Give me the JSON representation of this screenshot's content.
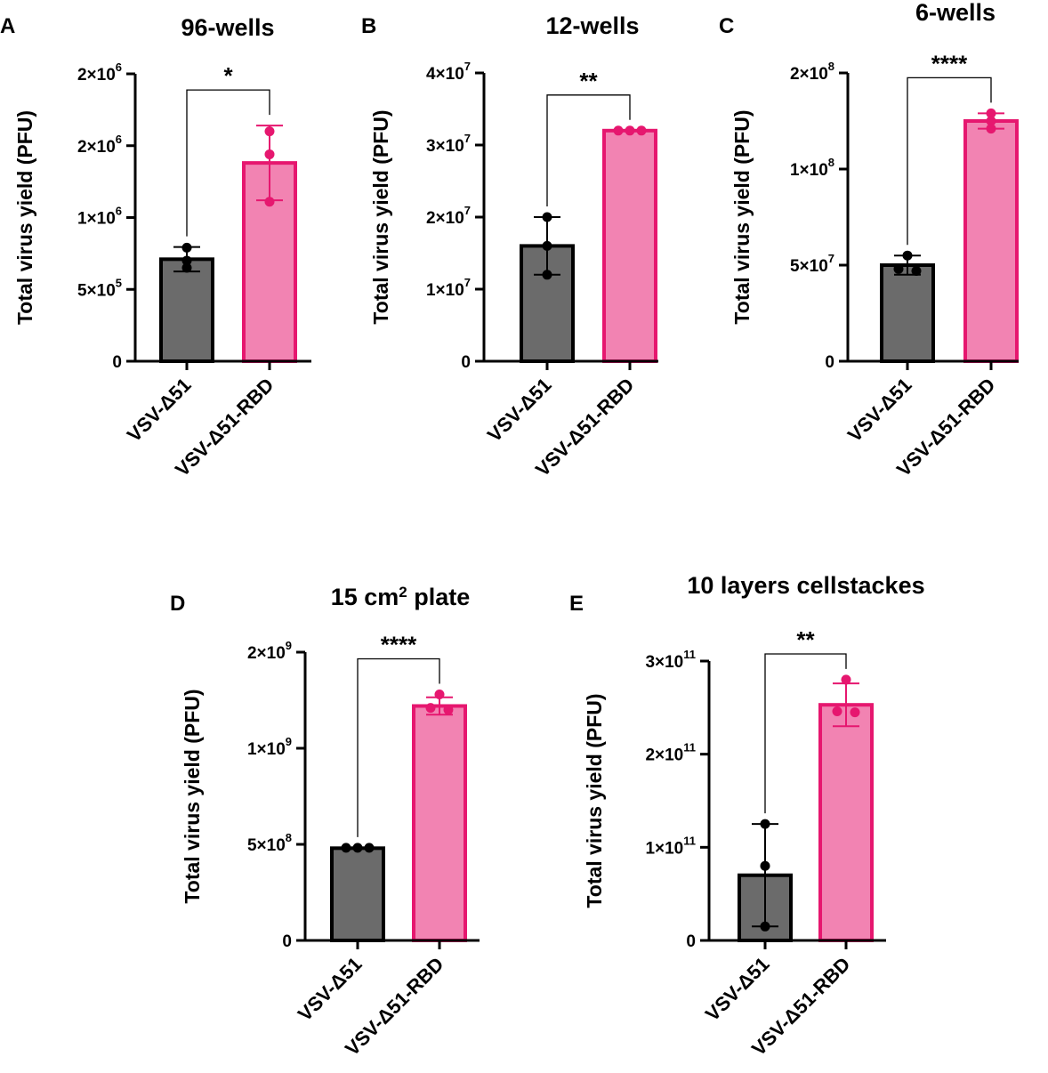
{
  "series_colors": {
    "VSV-Δ51": {
      "fill": "#6b6b6b",
      "stroke": "#000000",
      "dot": "#000000"
    },
    "VSV-Δ51-RBD": {
      "fill": "#f283b2",
      "stroke": "#e6176f",
      "dot": "#e6176f"
    }
  },
  "chart_data": [
    {
      "panel": "A",
      "type": "bar",
      "title": "96-wells",
      "ylabel": "Total virus yield (PFU)",
      "categories": [
        "VSV-Δ51",
        "VSV-Δ51-RBD"
      ],
      "ylim": [
        0,
        2000000
      ],
      "yticks": [
        {
          "value": 0,
          "base": "0",
          "exp": ""
        },
        {
          "value": 500000,
          "base": "5×10",
          "exp": "5"
        },
        {
          "value": 1000000,
          "base": "1×10",
          "exp": "6"
        },
        {
          "value": 1500000,
          "base": "2×10",
          "exp": "6"
        },
        {
          "value": 2000000,
          "base": "2×10",
          "exp": "6"
        }
      ],
      "series": [
        {
          "name": "VSV-Δ51",
          "mean": 710000,
          "sd": 85000,
          "points": [
            790000,
            700000,
            650000
          ]
        },
        {
          "name": "VSV-Δ51-RBD",
          "mean": 1380000,
          "sd": 260000,
          "points": [
            1600000,
            1440000,
            1110000
          ]
        }
      ],
      "significance": "*"
    },
    {
      "panel": "B",
      "type": "bar",
      "title": "12-wells",
      "ylabel": "Total virus yield (PFU)",
      "categories": [
        "VSV-Δ51",
        "VSV-Δ51-RBD"
      ],
      "ylim": [
        0,
        40000000
      ],
      "yticks": [
        {
          "value": 0,
          "base": "0",
          "exp": ""
        },
        {
          "value": 10000000,
          "base": "1×10",
          "exp": "7"
        },
        {
          "value": 20000000,
          "base": "2×10",
          "exp": "7"
        },
        {
          "value": 30000000,
          "base": "3×10",
          "exp": "7"
        },
        {
          "value": 40000000,
          "base": "4×10",
          "exp": "7"
        }
      ],
      "series": [
        {
          "name": "VSV-Δ51",
          "mean": 16000000,
          "sd": 4000000,
          "points": [
            20000000,
            16000000,
            12000000
          ]
        },
        {
          "name": "VSV-Δ51-RBD",
          "mean": 32000000,
          "sd": 0,
          "points": [
            32000000,
            32000000,
            32000000
          ]
        }
      ],
      "significance": "**"
    },
    {
      "panel": "C",
      "type": "bar",
      "title": "6-wells",
      "ylabel": "Total virus yield (PFU)",
      "categories": [
        "VSV-Δ51",
        "VSV-Δ51-RBD"
      ],
      "ylim": [
        0,
        150000000
      ],
      "yticks": [
        {
          "value": 0,
          "base": "0",
          "exp": ""
        },
        {
          "value": 50000000,
          "base": "5×10",
          "exp": "7"
        },
        {
          "value": 100000000,
          "base": "1×10",
          "exp": "8"
        },
        {
          "value": 150000000,
          "base": "2×10",
          "exp": "8"
        }
      ],
      "series": [
        {
          "name": "VSV-Δ51",
          "mean": 50000000,
          "sd": 5000000,
          "points": [
            55000000,
            48000000,
            47000000
          ]
        },
        {
          "name": "VSV-Δ51-RBD",
          "mean": 125000000,
          "sd": 4000000,
          "points": [
            129000000,
            125000000,
            121000000
          ]
        }
      ],
      "significance": "****"
    },
    {
      "panel": "D",
      "type": "bar",
      "title": "15 cm",
      "title_sup": "2",
      "title_tail": " plate",
      "ylabel": "Total virus yield (PFU)",
      "categories": [
        "VSV-Δ51",
        "VSV-Δ51-RBD"
      ],
      "ylim": [
        0,
        1500000000
      ],
      "yticks": [
        {
          "value": 0,
          "base": "0",
          "exp": ""
        },
        {
          "value": 500000000,
          "base": "5×10",
          "exp": "8"
        },
        {
          "value": 1000000000,
          "base": "1×10",
          "exp": "9"
        },
        {
          "value": 1500000000,
          "base": "2×10",
          "exp": "9"
        }
      ],
      "series": [
        {
          "name": "VSV-Δ51",
          "mean": 480000000,
          "sd": 0,
          "points": [
            482000000,
            482000000,
            482000000
          ]
        },
        {
          "name": "VSV-Δ51-RBD",
          "mean": 1220000000,
          "sd": 45000000,
          "points": [
            1280000000,
            1210000000,
            1200000000
          ]
        }
      ],
      "significance": "****"
    },
    {
      "panel": "E",
      "type": "bar",
      "title": "10 layers cellstackes",
      "ylabel": "Total virus yield (PFU)",
      "categories": [
        "VSV-Δ51",
        "VSV-Δ51-RBD"
      ],
      "ylim": [
        0,
        300000000000
      ],
      "yticks": [
        {
          "value": 0,
          "base": "0",
          "exp": ""
        },
        {
          "value": 100000000000,
          "base": "1×10",
          "exp": "11"
        },
        {
          "value": 200000000000,
          "base": "2×10",
          "exp": "11"
        },
        {
          "value": 300000000000,
          "base": "3×10",
          "exp": "11"
        }
      ],
      "series": [
        {
          "name": "VSV-Δ51",
          "mean": 70000000000,
          "sd": 55000000000,
          "points": [
            125000000000,
            80000000000,
            15000000000
          ]
        },
        {
          "name": "VSV-Δ51-RBD",
          "mean": 253000000000,
          "sd": 23000000000,
          "points": [
            280000000000,
            246000000000,
            245000000000
          ]
        }
      ],
      "significance": "**"
    }
  ]
}
